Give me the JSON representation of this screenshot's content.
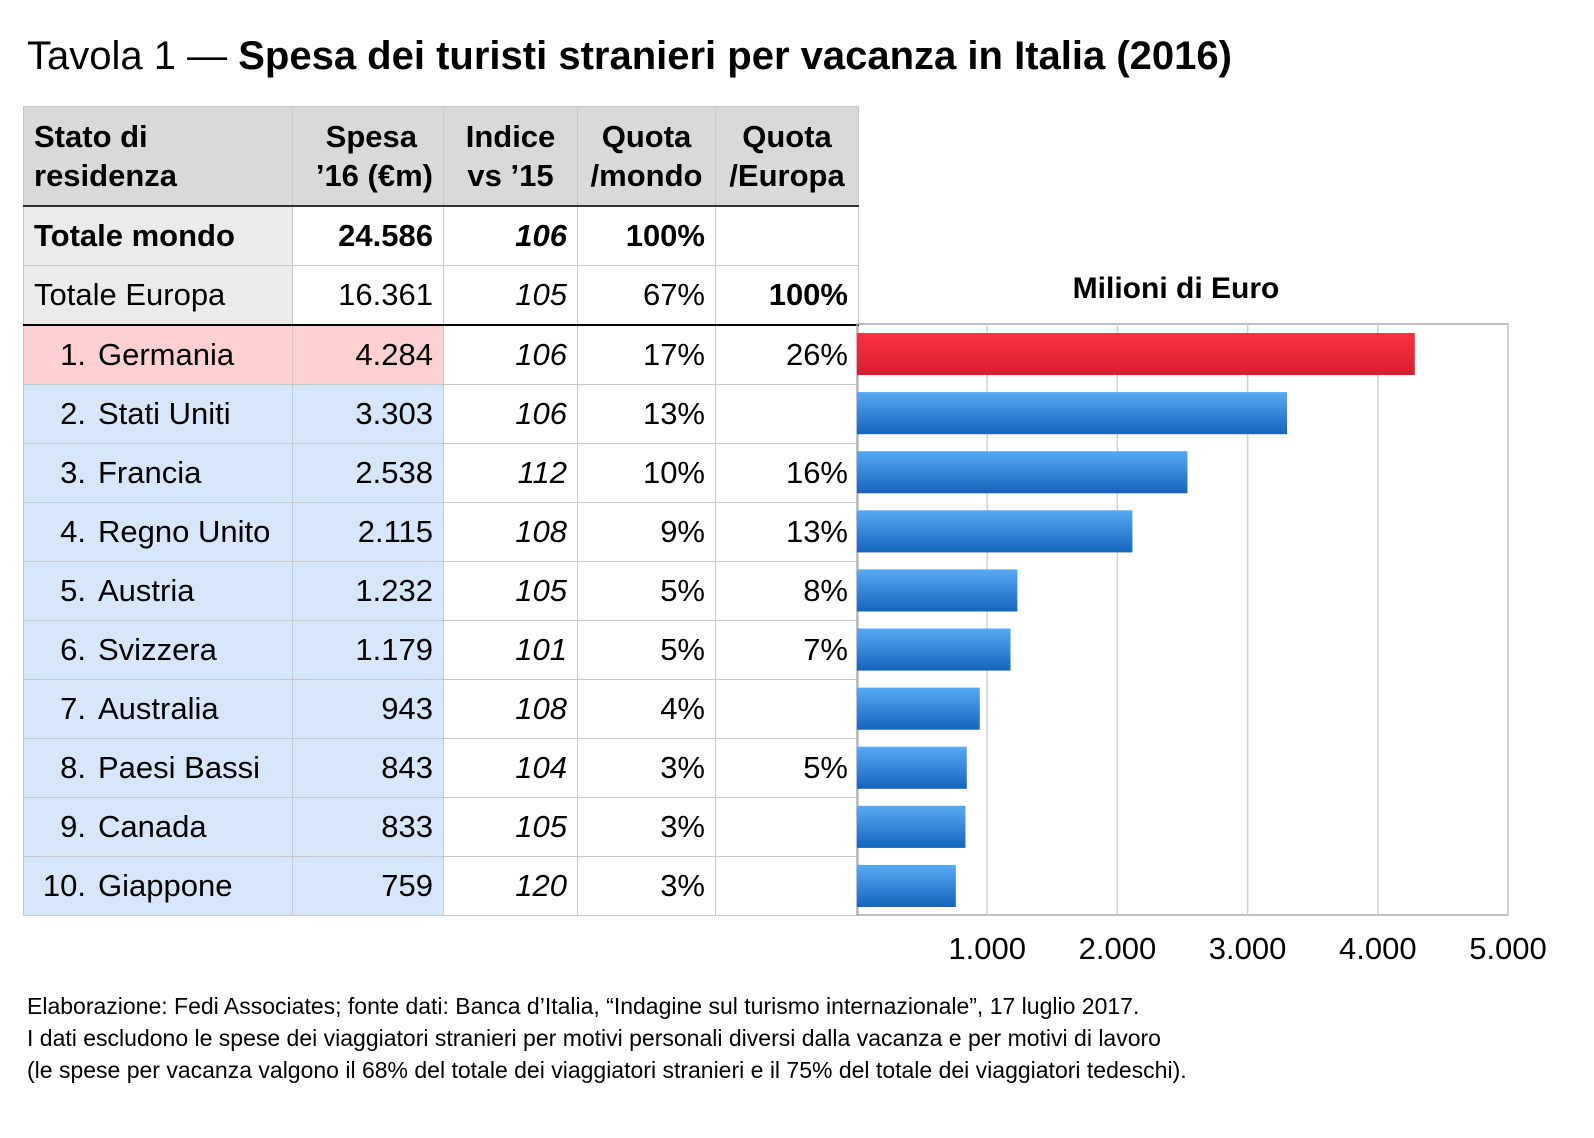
{
  "title": {
    "prefix": "Tavola 1 — ",
    "main": "Spesa dei turisti stranieri per vacanza in Italia (2016)"
  },
  "table": {
    "headers": [
      [
        "Stato di",
        "residenza"
      ],
      [
        "Spesa",
        "’16 (€m)"
      ],
      [
        "Indice",
        "vs ’15"
      ],
      [
        "Quota",
        "/mondo"
      ],
      [
        "Quota",
        "/Europa"
      ]
    ],
    "totals": [
      {
        "name": "Totale mondo",
        "spesa": "24.586",
        "indice": "106",
        "mondo": "100%",
        "europa": ""
      },
      {
        "name": "Totale Europa",
        "spesa": "16.361",
        "indice": "105",
        "mondo": "67%",
        "europa": "100%"
      }
    ],
    "rows": [
      {
        "rank": "1.",
        "name": "Germania",
        "spesa": "4.284",
        "indice": "106",
        "mondo": "17%",
        "europa": "26%"
      },
      {
        "rank": "2.",
        "name": "Stati Uniti",
        "spesa": "3.303",
        "indice": "106",
        "mondo": "13%",
        "europa": ""
      },
      {
        "rank": "3.",
        "name": "Francia",
        "spesa": "2.538",
        "indice": "112",
        "mondo": "10%",
        "europa": "16%"
      },
      {
        "rank": "4.",
        "name": "Regno Unito",
        "spesa": "2.115",
        "indice": "108",
        "mondo": "9%",
        "europa": "13%"
      },
      {
        "rank": "5.",
        "name": "Austria",
        "spesa": "1.232",
        "indice": "105",
        "mondo": "5%",
        "europa": "8%"
      },
      {
        "rank": "6.",
        "name": "Svizzera",
        "spesa": "1.179",
        "indice": "101",
        "mondo": "5%",
        "europa": "7%"
      },
      {
        "rank": "7.",
        "name": "Australia",
        "spesa": "943",
        "indice": "108",
        "mondo": "4%",
        "europa": ""
      },
      {
        "rank": "8.",
        "name": "Paesi Bassi",
        "spesa": "843",
        "indice": "104",
        "mondo": "3%",
        "europa": "5%"
      },
      {
        "rank": "9.",
        "name": "Canada",
        "spesa": "833",
        "indice": "105",
        "mondo": "3%",
        "europa": ""
      },
      {
        "rank": "10.",
        "name": "Giappone",
        "spesa": "759",
        "indice": "120",
        "mondo": "3%",
        "europa": ""
      }
    ]
  },
  "chart_data": {
    "type": "bar",
    "orientation": "horizontal",
    "title": "Milioni di Euro",
    "categories": [
      "Germania",
      "Stati Uniti",
      "Francia",
      "Regno Unito",
      "Austria",
      "Svizzera",
      "Australia",
      "Paesi Bassi",
      "Canada",
      "Giappone"
    ],
    "values": [
      4284,
      3303,
      2538,
      2115,
      1232,
      1179,
      943,
      843,
      833,
      759
    ],
    "xlim": [
      0,
      5000
    ],
    "xticks": [
      1000,
      2000,
      3000,
      4000,
      5000
    ],
    "xtick_labels": [
      "1.000",
      "2.000",
      "3.000",
      "4.000",
      "5.000"
    ],
    "grid": true,
    "colors": {
      "highlight": "#e8283a",
      "default": "#2a7fd6"
    }
  },
  "footer": [
    "Elaborazione: Fedi Associates; fonte dati: Banca d’Italia, “Indagine sul turismo internazionale”, 17 luglio 2017.",
    "I dati escludono le spese dei viaggiatori stranieri per motivi personali diversi dalla vacanza e per motivi di lavoro",
    "(le spese per vacanza valgono il 68% del totale dei viaggiatori stranieri e il 75% del totale dei viaggiatori tedeschi)."
  ]
}
